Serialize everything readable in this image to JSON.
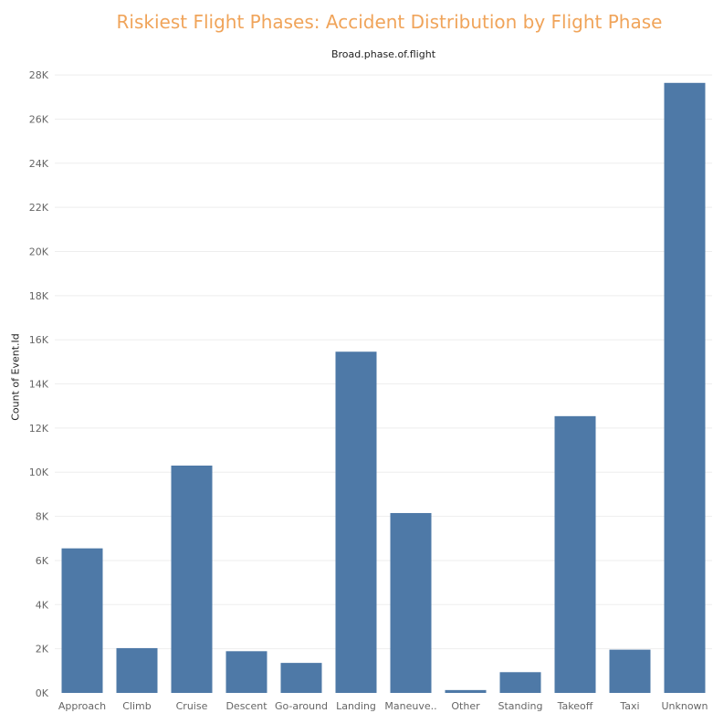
{
  "title": "Riskiest Flight Phases: Accident Distribution by Flight Phase",
  "column_header": "Broad.phase.of.flight",
  "colors": {
    "bar": "#4e79a7",
    "title": "#f0a45a",
    "gridline": "#eeeeee",
    "tick_label": "#666666"
  },
  "chart_data": {
    "type": "bar",
    "xlabel": "Broad.phase.of.flight",
    "ylabel": "Count of Event.Id",
    "ylim": [
      0,
      28500
    ],
    "grid": true,
    "yticks": [
      {
        "value": 0,
        "label": "0K"
      },
      {
        "value": 2000,
        "label": "2K"
      },
      {
        "value": 4000,
        "label": "4K"
      },
      {
        "value": 6000,
        "label": "6K"
      },
      {
        "value": 8000,
        "label": "8K"
      },
      {
        "value": 10000,
        "label": "10K"
      },
      {
        "value": 12000,
        "label": "12K"
      },
      {
        "value": 14000,
        "label": "14K"
      },
      {
        "value": 16000,
        "label": "16K"
      },
      {
        "value": 18000,
        "label": "18K"
      },
      {
        "value": 20000,
        "label": "20K"
      },
      {
        "value": 22000,
        "label": "22K"
      },
      {
        "value": 24000,
        "label": "24K"
      },
      {
        "value": 26000,
        "label": "26K"
      },
      {
        "value": 28000,
        "label": "28K"
      }
    ],
    "categories": [
      "Approach",
      "Climb",
      "Cruise",
      "Descent",
      "Go-around",
      "Landing",
      "Maneuve..",
      "Other",
      "Standing",
      "Takeoff",
      "Taxi",
      "Unknown"
    ],
    "values": [
      6550,
      2030,
      10300,
      1890,
      1360,
      15460,
      8150,
      130,
      940,
      12540,
      1960,
      27640
    ]
  }
}
